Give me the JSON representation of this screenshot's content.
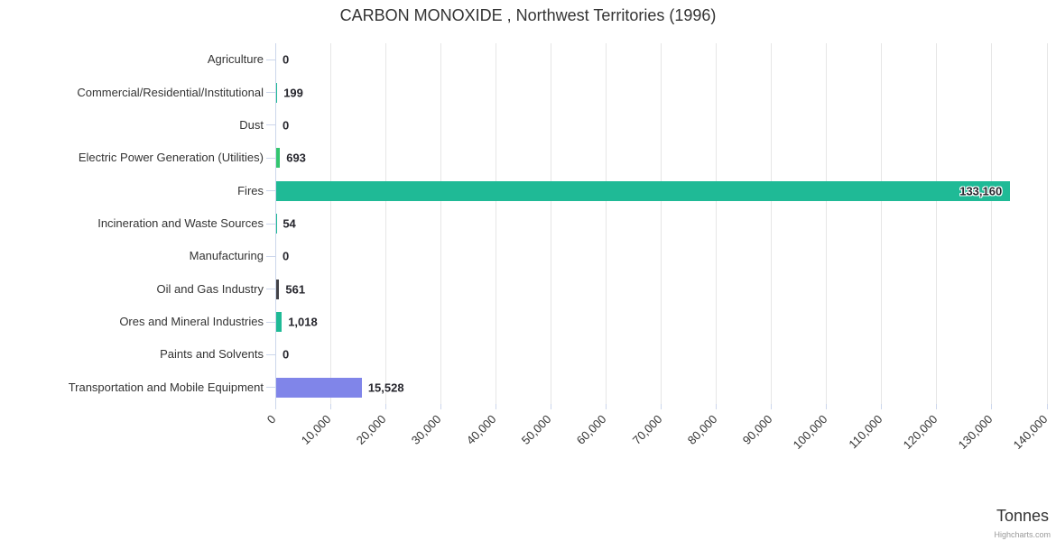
{
  "credit": "Highcharts.com",
  "colors": {
    "axis_line": "#ccd6eb",
    "grid_line": "#e6e6e6",
    "label_color": "#333333",
    "value_label_color": "#26262d"
  },
  "chart_data": {
    "type": "bar",
    "title": "CARBON MONOXIDE , Northwest Territories (1996)",
    "value_axis_title": "Tonnes",
    "categories": [
      "Agriculture",
      "Commercial/Residential/Institutional",
      "Dust",
      "Electric Power Generation (Utilities)",
      "Fires",
      "Incineration and Waste Sources",
      "Manufacturing",
      "Oil and Gas Industry",
      "Ores and Mineral Industries",
      "Paints and Solvents",
      "Transportation and Mobile Equipment"
    ],
    "values": [
      0,
      199,
      0,
      693,
      133160,
      54,
      0,
      561,
      1018,
      0,
      15528
    ],
    "bar_colors": [
      "#1fba96",
      "#1fba96",
      "#1fba96",
      "#33c56f",
      "#1fba96",
      "#1fba96",
      "#1fba96",
      "#434348",
      "#1fba96",
      "#1fba96",
      "#8085e9"
    ],
    "xlim": [
      0,
      140000
    ],
    "value_axis_ticks": [
      0,
      10000,
      20000,
      30000,
      40000,
      50000,
      60000,
      70000,
      80000,
      90000,
      100000,
      110000,
      120000,
      130000,
      140000
    ],
    "grid": true,
    "legend": false
  }
}
